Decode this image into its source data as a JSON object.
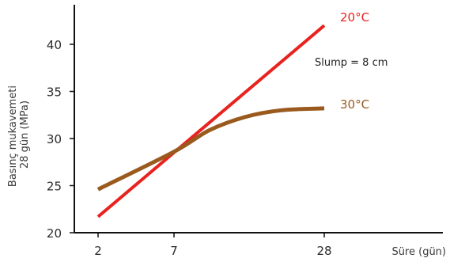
{
  "chart_data": {
    "type": "line",
    "xlabel": "Süre (gün)",
    "ylabel": [
      "Basınç mukavemeti",
      "28 gün (MPa)"
    ],
    "x_ticks": [
      2,
      7,
      28
    ],
    "y_ticks": [
      20,
      25,
      30,
      35,
      40
    ],
    "ylim": [
      20,
      44
    ],
    "grid": false,
    "annotation": "Slump = 8 cm",
    "series": [
      {
        "name": "20°C",
        "color": "#e8231f",
        "points": [
          {
            "x": 2,
            "y": 21.7
          },
          {
            "x": 28,
            "y": 42.0
          }
        ]
      },
      {
        "name": "30°C",
        "color": "#9a5a1e",
        "points": [
          {
            "x": 2,
            "y": 24.6
          },
          {
            "x": 7,
            "y": 28.6
          },
          {
            "x": 12,
            "y": 30.9
          },
          {
            "x": 17,
            "y": 32.3
          },
          {
            "x": 22,
            "y": 33.0
          },
          {
            "x": 28,
            "y": 33.2
          }
        ]
      }
    ]
  }
}
